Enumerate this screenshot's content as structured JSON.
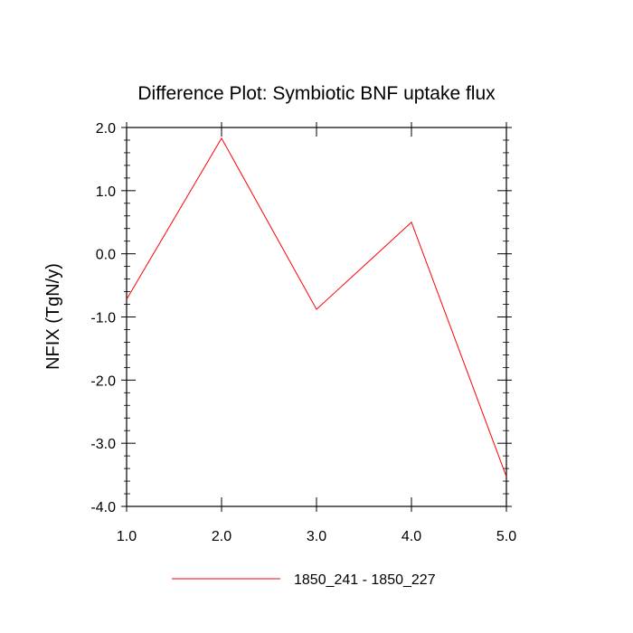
{
  "chart_data": {
    "type": "line",
    "title": "Difference Plot: Symbiotic BNF uptake flux",
    "xlabel": "",
    "ylabel": "NFIX  (TgN/y)",
    "xlim": [
      1.0,
      5.0
    ],
    "ylim": [
      -4.0,
      2.0
    ],
    "x_ticks": [
      "1.0",
      "2.0",
      "3.0",
      "4.0",
      "5.0"
    ],
    "y_ticks": [
      "2.0",
      "1.0",
      "0.0",
      "-1.0",
      "-2.0",
      "-3.0",
      "-4.0"
    ],
    "grid": false,
    "legend_position": "bottom",
    "series": [
      {
        "name": "1850_241 - 1850_227",
        "color": "#ff0000",
        "x": [
          1.0,
          2.0,
          3.0,
          4.0,
          5.0
        ],
        "values": [
          -0.72,
          1.83,
          -0.88,
          0.5,
          -3.53
        ]
      }
    ]
  }
}
